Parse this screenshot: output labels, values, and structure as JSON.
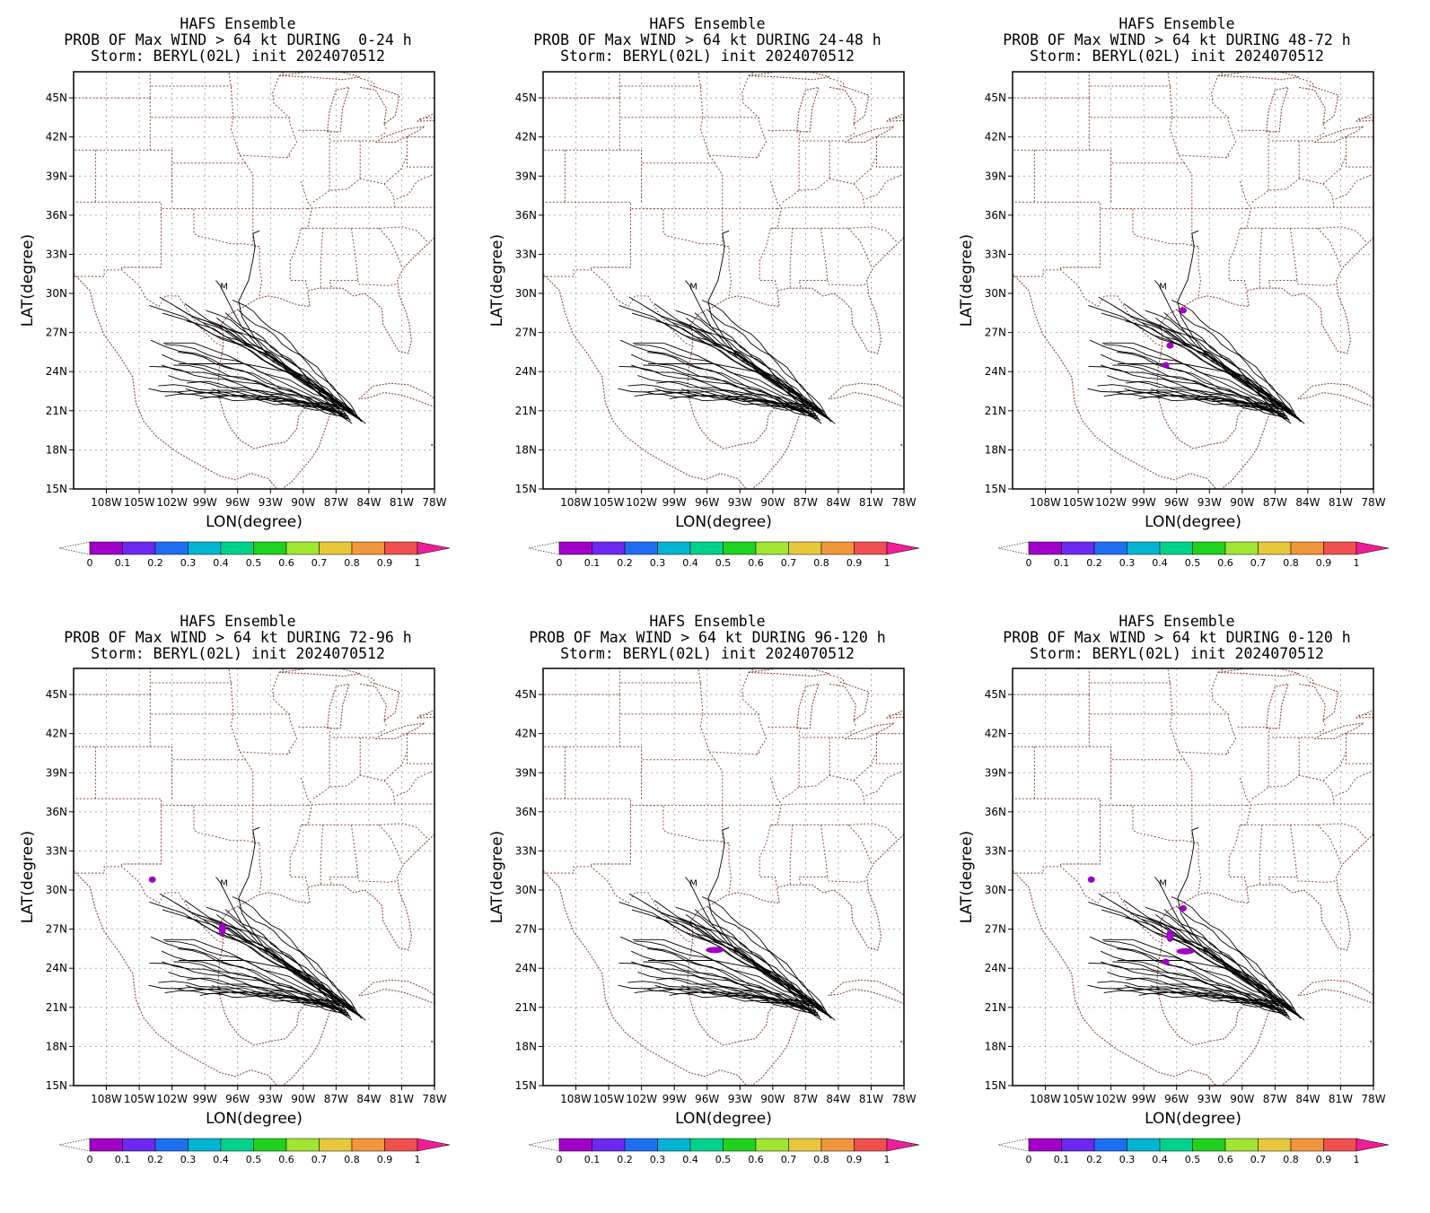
{
  "figure": {
    "panels": [
      {
        "title_lines": [
          "HAFS Ensemble",
          "PROB OF Max WIND > 64 kt DURING  0-24 h",
          "Storm: BERYL(02L) init 2024070512"
        ],
        "blobs": []
      },
      {
        "title_lines": [
          "HAFS Ensemble",
          "PROB OF Max WIND > 64 kt DURING 24-48 h",
          "Storm: BERYL(02L) init 2024070512"
        ],
        "blobs": []
      },
      {
        "title_lines": [
          "HAFS Ensemble",
          "PROB OF Max WIND > 64 kt DURING 48-72 h",
          "Storm: BERYL(02L) init 2024070512"
        ],
        "blobs": [
          {
            "lon": -96.6,
            "lat": 26.0,
            "value": 0.05
          },
          {
            "lon": -97.0,
            "lat": 24.5,
            "value": 0.05
          },
          {
            "lon": -95.4,
            "lat": 28.7,
            "value": 0.05
          }
        ]
      },
      {
        "title_lines": [
          "HAFS Ensemble",
          "PROB OF Max WIND > 64 kt DURING 72-96 h",
          "Storm: BERYL(02L) init 2024070512"
        ],
        "blobs": [
          {
            "lon": -97.4,
            "lat": 27.0,
            "value": 0.05
          },
          {
            "lon": -103.8,
            "lat": 30.8,
            "value": 0.05
          }
        ]
      },
      {
        "title_lines": [
          "HAFS Ensemble",
          "PROB OF Max WIND > 64 kt DURING 96-120 h",
          "Storm: BERYL(02L) init 2024070512"
        ],
        "blobs": [
          {
            "lon": -95.3,
            "lat": 25.4,
            "value": 0.05
          }
        ]
      },
      {
        "title_lines": [
          "HAFS Ensemble",
          "PROB OF Max WIND > 64 kt DURING 0-120 h",
          "Storm: BERYL(02L) init 2024070512"
        ],
        "blobs": [
          {
            "lon": -96.6,
            "lat": 26.5,
            "value": 0.05
          },
          {
            "lon": -97.0,
            "lat": 24.5,
            "value": 0.05
          },
          {
            "lon": -95.2,
            "lat": 25.3,
            "value": 0.05
          },
          {
            "lon": -103.8,
            "lat": 30.8,
            "value": 0.05
          },
          {
            "lon": -95.4,
            "lat": 28.6,
            "value": 0.05
          }
        ]
      }
    ],
    "x_axis": {
      "label": "LON(degree)",
      "range": [
        -111,
        -78
      ],
      "ticks": [
        -108,
        -105,
        -102,
        -99,
        -96,
        -93,
        -90,
        -87,
        -84,
        -81,
        -78
      ],
      "tick_labels": [
        "108W",
        "105W",
        "102W",
        "99W",
        "96W",
        "93W",
        "90W",
        "87W",
        "84W",
        "81W",
        "78W"
      ]
    },
    "y_axis": {
      "label": "LAT(degree)",
      "range": [
        15,
        47
      ],
      "ticks": [
        15,
        18,
        21,
        24,
        27,
        30,
        33,
        36,
        39,
        42,
        45
      ],
      "tick_labels": [
        "15N",
        "18N",
        "21N",
        "24N",
        "27N",
        "30N",
        "33N",
        "36N",
        "39N",
        "42N",
        "45N"
      ]
    },
    "colorbar": {
      "labels": [
        "0",
        "0.1",
        "0.2",
        "0.3",
        "0.4",
        "0.5",
        "0.6",
        "0.7",
        "0.8",
        "0.9",
        "1"
      ],
      "colors": [
        "#a000c8",
        "#6e28f0",
        "#1e6ef0",
        "#00b4d2",
        "#00d28c",
        "#1ed21e",
        "#a0e632",
        "#e6c83c",
        "#f0963c",
        "#f05050",
        "#f01e96"
      ]
    },
    "track_color": "#000000",
    "boundary_color": "#8b4a3a",
    "grid_color": "#9a9a9a"
  }
}
